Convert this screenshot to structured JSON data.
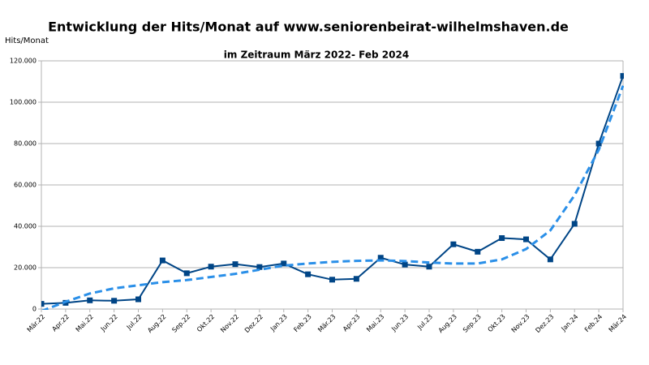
{
  "chart_data": {
    "type": "line",
    "title": "Entwicklung der Hits/Monat auf www.seniorenbeirat-wilhelmshaven.de",
    "subtitle": "im Zeitraum März 2022- Feb 2024",
    "y_label": "Hits/Monat",
    "categories": [
      "Mär.22",
      "Apr.22",
      "Mai.22",
      "Jun.22",
      "Jul.22",
      "Aug.22",
      "Sep.22",
      "Okt.22",
      "Nov.22",
      "Dez.22",
      "Jan.23",
      "Feb.23",
      "Mär.23",
      "Apr.23",
      "Mai.23",
      "Jun.23",
      "Jul.23",
      "Aug.23",
      "Sep.23",
      "Okt.23",
      "Nov.23",
      "Dez.23",
      "Jan.24",
      "Feb.24",
      "Mär.24"
    ],
    "series": [
      {
        "color": "#004586",
        "marker": "square",
        "dashed": false,
        "values": [
          2500,
          3000,
          4200,
          4000,
          4700,
          23500,
          17300,
          20500,
          21700,
          20300,
          22000,
          16800,
          14200,
          14600,
          24800,
          21500,
          20500,
          31300,
          27700,
          34300,
          33700,
          24000,
          41200,
          80000,
          112700
        ]
      },
      {
        "color": "#2a8fe8",
        "marker": "none",
        "dashed": true,
        "values": [
          -1000,
          3500,
          7500,
          10000,
          11500,
          13000,
          14000,
          15500,
          17000,
          19000,
          21000,
          22000,
          22800,
          23300,
          23500,
          23200,
          22500,
          22000,
          22000,
          24000,
          29000,
          38000,
          55000,
          77000,
          108000
        ]
      }
    ],
    "ylim": [
      0,
      120000
    ],
    "yticks": [
      0,
      {
        "value": 20000,
        "label": "20.000"
      },
      {
        "value": 40000,
        "label": "40.000"
      },
      {
        "value": 60000,
        "label": "60.000"
      },
      {
        "value": 80000,
        "label": "80.000"
      },
      {
        "value": 100000,
        "label": "100.000"
      },
      {
        "value": 120000,
        "label": "120.000"
      }
    ],
    "grid": true
  }
}
